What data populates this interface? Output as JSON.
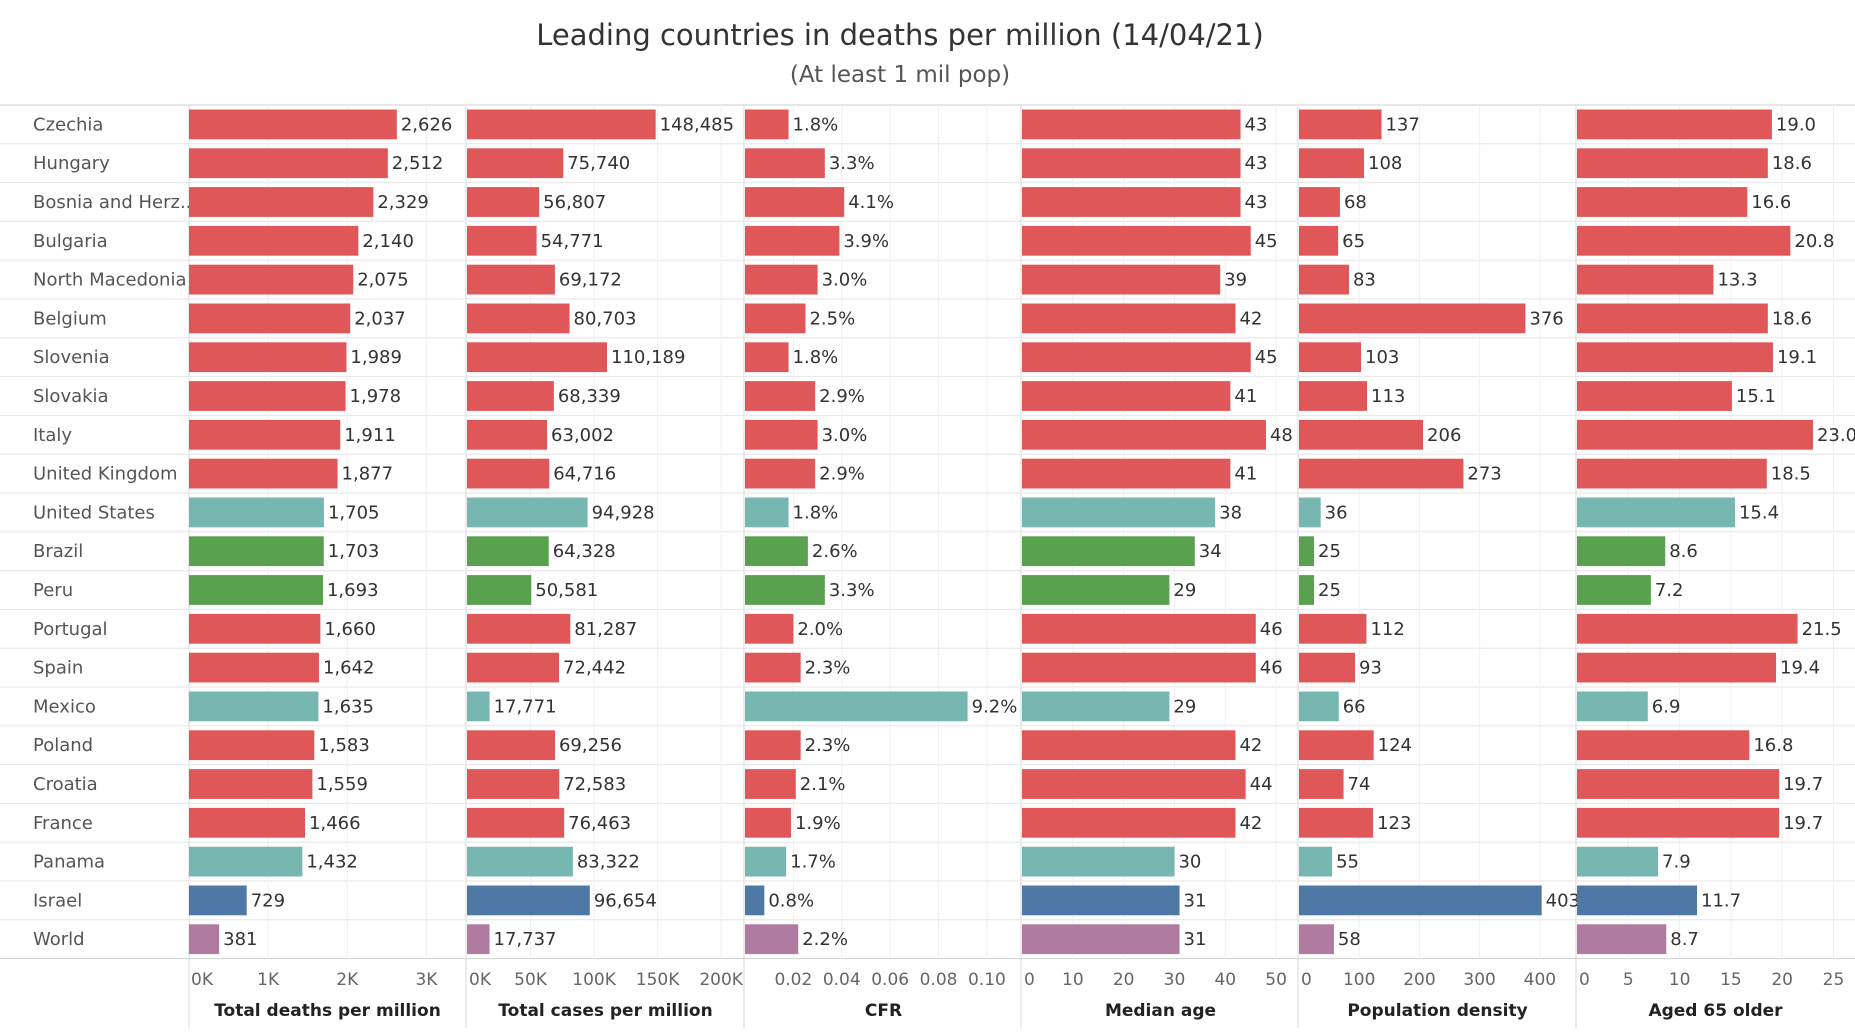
{
  "chart_data": {
    "type": "bar",
    "orientation": "horizontal",
    "title": "Leading countries in deaths per million (14/04/21)",
    "subtitle": "(At least 1 mil pop)",
    "categories": [
      "Czechia",
      "Hungary",
      "Bosnia and Herz..",
      "Bulgaria",
      "North Macedonia",
      "Belgium",
      "Slovenia",
      "Slovakia",
      "Italy",
      "United Kingdom",
      "United States",
      "Brazil",
      "Peru",
      "Portugal",
      "Spain",
      "Mexico",
      "Poland",
      "Croatia",
      "France",
      "Panama",
      "Israel",
      "World"
    ],
    "category_colors": [
      "#e05759",
      "#e05759",
      "#e05759",
      "#e05759",
      "#e05759",
      "#e05759",
      "#e05759",
      "#e05759",
      "#e05759",
      "#e05759",
      "#76b7b2",
      "#59a14f",
      "#59a14f",
      "#e05759",
      "#e05759",
      "#76b7b2",
      "#e05759",
      "#e05759",
      "#e05759",
      "#76b7b2",
      "#4e79a7",
      "#b07aa1"
    ],
    "series": [
      {
        "name": "Total deaths per million",
        "values": [
          2626,
          2512,
          2329,
          2140,
          2075,
          2037,
          1989,
          1978,
          1911,
          1877,
          1705,
          1703,
          1693,
          1660,
          1642,
          1635,
          1583,
          1559,
          1466,
          1432,
          729,
          381
        ],
        "labels": [
          "2,626",
          "2,512",
          "2,329",
          "2,140",
          "2,075",
          "2,037",
          "1,989",
          "1,978",
          "1,911",
          "1,877",
          "1,705",
          "1,703",
          "1,693",
          "1,660",
          "1,642",
          "1,635",
          "1,583",
          "1,559",
          "1,466",
          "1,432",
          "729",
          "381"
        ],
        "xlim": [
          0,
          3500
        ],
        "ticks": [
          0,
          1000,
          2000,
          3000
        ],
        "tick_labels": [
          "0K",
          "1K",
          "2K",
          "3K"
        ]
      },
      {
        "name": "Total cases per million",
        "values": [
          148485,
          75740,
          56807,
          54771,
          69172,
          80703,
          110189,
          68339,
          63002,
          64716,
          94928,
          64328,
          50581,
          81287,
          72442,
          17771,
          69256,
          72583,
          76463,
          83322,
          96654,
          17737
        ],
        "labels": [
          "148,485",
          "75,740",
          "56,807",
          "54,771",
          "69,172",
          "80,703",
          "110,189",
          "68,339",
          "63,002",
          "64,716",
          "94,928",
          "64,328",
          "50,581",
          "81,287",
          "72,442",
          "17,771",
          "69,256",
          "72,583",
          "76,463",
          "83,322",
          "96,654",
          "17,737"
        ],
        "xlim": [
          0,
          218000
        ],
        "ticks": [
          0,
          50000,
          100000,
          150000,
          200000
        ],
        "tick_labels": [
          "0K",
          "50K",
          "100K",
          "150K",
          "200K"
        ]
      },
      {
        "name": "CFR",
        "values": [
          0.018,
          0.033,
          0.041,
          0.039,
          0.03,
          0.025,
          0.018,
          0.029,
          0.03,
          0.029,
          0.018,
          0.026,
          0.033,
          0.02,
          0.023,
          0.092,
          0.023,
          0.021,
          0.019,
          0.017,
          0.008,
          0.022
        ],
        "labels": [
          "1.8%",
          "3.3%",
          "4.1%",
          "3.9%",
          "3.0%",
          "2.5%",
          "1.8%",
          "2.9%",
          "3.0%",
          "2.9%",
          "1.8%",
          "2.6%",
          "3.3%",
          "2.0%",
          "2.3%",
          "9.2%",
          "2.3%",
          "2.1%",
          "1.9%",
          "1.7%",
          "0.8%",
          "2.2%"
        ],
        "xlim": [
          0,
          0.1145
        ],
        "ticks": [
          0.02,
          0.04,
          0.06,
          0.08,
          0.1
        ],
        "tick_labels": [
          "0.02",
          "0.04",
          "0.06",
          "0.08",
          "0.10"
        ]
      },
      {
        "name": "Median age",
        "values": [
          43,
          43,
          43,
          45,
          39,
          42,
          45,
          41,
          48,
          41,
          38,
          34,
          29,
          46,
          46,
          29,
          42,
          44,
          42,
          30,
          31,
          31
        ],
        "labels": [
          "43",
          "43",
          "43",
          "45",
          "39",
          "42",
          "45",
          "41",
          "48",
          "41",
          "38",
          "34",
          "29",
          "46",
          "46",
          "29",
          "42",
          "44",
          "42",
          "30",
          "31",
          "31"
        ],
        "xlim": [
          0,
          54.5
        ],
        "ticks": [
          0,
          10,
          20,
          30,
          40,
          50
        ],
        "tick_labels": [
          "0",
          "10",
          "20",
          "30",
          "40",
          "50"
        ]
      },
      {
        "name": "Population density",
        "values": [
          137,
          108,
          68,
          65,
          83,
          376,
          103,
          113,
          206,
          273,
          36,
          25,
          25,
          112,
          93,
          66,
          124,
          74,
          123,
          55,
          403,
          58
        ],
        "labels": [
          "137",
          "108",
          "68",
          "65",
          "83",
          "376",
          "103",
          "113",
          "206",
          "273",
          "36",
          "25",
          "25",
          "112",
          "93",
          "66",
          "124",
          "74",
          "123",
          "55",
          "403",
          "58"
        ],
        "xlim": [
          0,
          460
        ],
        "ticks": [
          0,
          100,
          200,
          300,
          400
        ],
        "tick_labels": [
          "0",
          "100",
          "200",
          "300",
          "400"
        ]
      },
      {
        "name": "Aged 65 older",
        "values": [
          19.0,
          18.6,
          16.6,
          20.8,
          13.3,
          18.6,
          19.1,
          15.1,
          23.0,
          18.5,
          15.4,
          8.6,
          7.2,
          21.5,
          19.4,
          6.9,
          16.8,
          19.7,
          19.7,
          7.9,
          11.7,
          8.7
        ],
        "labels": [
          "19.0",
          "18.6",
          "16.6",
          "20.8",
          "13.3",
          "18.6",
          "19.1",
          "15.1",
          "23.0",
          "18.5",
          "15.4",
          "8.6",
          "7.2",
          "21.5",
          "19.4",
          "6.9",
          "16.8",
          "19.7",
          "19.7",
          "7.9",
          "11.7",
          "8.7"
        ],
        "xlim": [
          0,
          27
        ],
        "ticks": [
          0,
          5,
          10,
          15,
          20,
          25
        ],
        "tick_labels": [
          "0",
          "5",
          "10",
          "15",
          "20",
          "25"
        ]
      }
    ]
  }
}
